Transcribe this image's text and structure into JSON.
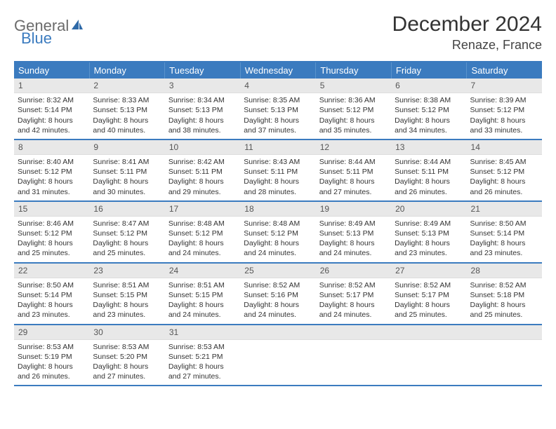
{
  "brand": {
    "part1": "General",
    "part2": "Blue"
  },
  "title": "December 2024",
  "location": "Renaze, France",
  "colors": {
    "accent": "#3b7bbf",
    "header_bg": "#3b7bbf",
    "header_text": "#ffffff",
    "daynum_bg": "#e8e8e8",
    "text": "#333333",
    "logo_gray": "#6b6b6b"
  },
  "weekdays": [
    "Sunday",
    "Monday",
    "Tuesday",
    "Wednesday",
    "Thursday",
    "Friday",
    "Saturday"
  ],
  "weeks": [
    [
      {
        "n": "1",
        "sr": "8:32 AM",
        "ss": "5:14 PM",
        "dl": "8 hours and 42 minutes."
      },
      {
        "n": "2",
        "sr": "8:33 AM",
        "ss": "5:13 PM",
        "dl": "8 hours and 40 minutes."
      },
      {
        "n": "3",
        "sr": "8:34 AM",
        "ss": "5:13 PM",
        "dl": "8 hours and 38 minutes."
      },
      {
        "n": "4",
        "sr": "8:35 AM",
        "ss": "5:13 PM",
        "dl": "8 hours and 37 minutes."
      },
      {
        "n": "5",
        "sr": "8:36 AM",
        "ss": "5:12 PM",
        "dl": "8 hours and 35 minutes."
      },
      {
        "n": "6",
        "sr": "8:38 AM",
        "ss": "5:12 PM",
        "dl": "8 hours and 34 minutes."
      },
      {
        "n": "7",
        "sr": "8:39 AM",
        "ss": "5:12 PM",
        "dl": "8 hours and 33 minutes."
      }
    ],
    [
      {
        "n": "8",
        "sr": "8:40 AM",
        "ss": "5:12 PM",
        "dl": "8 hours and 31 minutes."
      },
      {
        "n": "9",
        "sr": "8:41 AM",
        "ss": "5:11 PM",
        "dl": "8 hours and 30 minutes."
      },
      {
        "n": "10",
        "sr": "8:42 AM",
        "ss": "5:11 PM",
        "dl": "8 hours and 29 minutes."
      },
      {
        "n": "11",
        "sr": "8:43 AM",
        "ss": "5:11 PM",
        "dl": "8 hours and 28 minutes."
      },
      {
        "n": "12",
        "sr": "8:44 AM",
        "ss": "5:11 PM",
        "dl": "8 hours and 27 minutes."
      },
      {
        "n": "13",
        "sr": "8:44 AM",
        "ss": "5:11 PM",
        "dl": "8 hours and 26 minutes."
      },
      {
        "n": "14",
        "sr": "8:45 AM",
        "ss": "5:12 PM",
        "dl": "8 hours and 26 minutes."
      }
    ],
    [
      {
        "n": "15",
        "sr": "8:46 AM",
        "ss": "5:12 PM",
        "dl": "8 hours and 25 minutes."
      },
      {
        "n": "16",
        "sr": "8:47 AM",
        "ss": "5:12 PM",
        "dl": "8 hours and 25 minutes."
      },
      {
        "n": "17",
        "sr": "8:48 AM",
        "ss": "5:12 PM",
        "dl": "8 hours and 24 minutes."
      },
      {
        "n": "18",
        "sr": "8:48 AM",
        "ss": "5:12 PM",
        "dl": "8 hours and 24 minutes."
      },
      {
        "n": "19",
        "sr": "8:49 AM",
        "ss": "5:13 PM",
        "dl": "8 hours and 24 minutes."
      },
      {
        "n": "20",
        "sr": "8:49 AM",
        "ss": "5:13 PM",
        "dl": "8 hours and 23 minutes."
      },
      {
        "n": "21",
        "sr": "8:50 AM",
        "ss": "5:14 PM",
        "dl": "8 hours and 23 minutes."
      }
    ],
    [
      {
        "n": "22",
        "sr": "8:50 AM",
        "ss": "5:14 PM",
        "dl": "8 hours and 23 minutes."
      },
      {
        "n": "23",
        "sr": "8:51 AM",
        "ss": "5:15 PM",
        "dl": "8 hours and 23 minutes."
      },
      {
        "n": "24",
        "sr": "8:51 AM",
        "ss": "5:15 PM",
        "dl": "8 hours and 24 minutes."
      },
      {
        "n": "25",
        "sr": "8:52 AM",
        "ss": "5:16 PM",
        "dl": "8 hours and 24 minutes."
      },
      {
        "n": "26",
        "sr": "8:52 AM",
        "ss": "5:17 PM",
        "dl": "8 hours and 24 minutes."
      },
      {
        "n": "27",
        "sr": "8:52 AM",
        "ss": "5:17 PM",
        "dl": "8 hours and 25 minutes."
      },
      {
        "n": "28",
        "sr": "8:52 AM",
        "ss": "5:18 PM",
        "dl": "8 hours and 25 minutes."
      }
    ],
    [
      {
        "n": "29",
        "sr": "8:53 AM",
        "ss": "5:19 PM",
        "dl": "8 hours and 26 minutes."
      },
      {
        "n": "30",
        "sr": "8:53 AM",
        "ss": "5:20 PM",
        "dl": "8 hours and 27 minutes."
      },
      {
        "n": "31",
        "sr": "8:53 AM",
        "ss": "5:21 PM",
        "dl": "8 hours and 27 minutes."
      },
      {
        "empty": true
      },
      {
        "empty": true
      },
      {
        "empty": true
      },
      {
        "empty": true
      }
    ]
  ],
  "labels": {
    "sunrise": "Sunrise: ",
    "sunset": "Sunset: ",
    "daylight": "Daylight: "
  }
}
